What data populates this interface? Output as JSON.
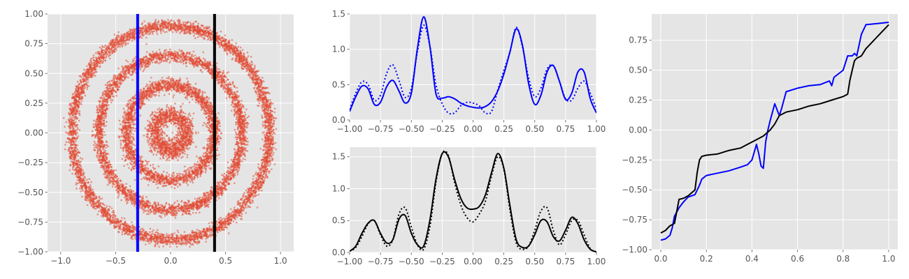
{
  "figure": {
    "background": "#ffffff",
    "axes_facecolor": "#e5e5e5",
    "grid_color": "#ffffff",
    "tick_color": "#555555"
  },
  "chart_data": [
    {
      "type": "scatter",
      "description": "Concentric noisy rings of points with two vertical lines",
      "rings": [
        {
          "radius": 0.15,
          "width": 0.09,
          "count": 1400
        },
        {
          "radius": 0.4,
          "width": 0.07,
          "count": 2600
        },
        {
          "radius": 0.65,
          "width": 0.06,
          "count": 3500
        },
        {
          "radius": 0.9,
          "width": 0.06,
          "count": 4800
        }
      ],
      "point_color": "#e24a33",
      "vlines": [
        {
          "x": -0.3,
          "color": "#0000ff"
        },
        {
          "x": 0.4,
          "color": "#000000"
        }
      ],
      "xlim": [
        -1.12,
        1.12
      ],
      "ylim": [
        -1.0,
        1.0
      ],
      "xticks": [
        -1.0,
        -0.5,
        0.0,
        0.5,
        1.0
      ],
      "xtick_labels": [
        "−1.0",
        "−0.5",
        "0.0",
        "0.5",
        "1.0"
      ],
      "yticks": [
        -1.0,
        -0.75,
        -0.5,
        -0.25,
        0.0,
        0.25,
        0.5,
        0.75,
        1.0
      ],
      "ytick_labels": [
        "−1.00",
        "−0.75",
        "−0.50",
        "−0.25",
        "0.00",
        "0.25",
        "0.50",
        "0.75",
        "1.00"
      ],
      "grid": true
    },
    {
      "type": "line",
      "description": "Density slice at x = -0.3 (blue): solid = estimate, dotted = reference",
      "xlim": [
        -1.0,
        1.0
      ],
      "ylim": [
        0.0,
        1.5
      ],
      "xticks": [
        -1.0,
        -0.75,
        -0.5,
        -0.25,
        0.0,
        0.25,
        0.5,
        0.75,
        1.0
      ],
      "xtick_labels": [
        "−1.00",
        "−0.75",
        "−0.50",
        "−0.25",
        "0.00",
        "0.25",
        "0.50",
        "0.75",
        "1.00"
      ],
      "yticks": [
        0.0,
        0.5,
        1.0,
        1.5
      ],
      "ytick_labels": [
        "0.0",
        "0.5",
        "1.0",
        "1.5"
      ],
      "grid": true,
      "series": [
        {
          "style": "solid",
          "color": "#0000ff",
          "x": [
            -1.0,
            -0.95,
            -0.9,
            -0.85,
            -0.8,
            -0.75,
            -0.7,
            -0.65,
            -0.6,
            -0.55,
            -0.5,
            -0.45,
            -0.4,
            -0.35,
            -0.3,
            -0.25,
            -0.2,
            -0.15,
            -0.1,
            -0.05,
            0.0,
            0.05,
            0.1,
            0.15,
            0.2,
            0.25,
            0.3,
            0.35,
            0.4,
            0.45,
            0.5,
            0.55,
            0.6,
            0.65,
            0.7,
            0.75,
            0.8,
            0.85,
            0.9,
            0.95,
            1.0
          ],
          "y": [
            0.12,
            0.33,
            0.48,
            0.44,
            0.22,
            0.25,
            0.47,
            0.56,
            0.41,
            0.24,
            0.38,
            1.02,
            1.46,
            1.05,
            0.37,
            0.31,
            0.33,
            0.3,
            0.24,
            0.2,
            0.18,
            0.17,
            0.19,
            0.26,
            0.41,
            0.65,
            0.97,
            1.29,
            1.06,
            0.52,
            0.22,
            0.35,
            0.68,
            0.77,
            0.55,
            0.29,
            0.38,
            0.68,
            0.68,
            0.3,
            0.1
          ]
        },
        {
          "style": "dotted",
          "color": "#0000ff",
          "x": [
            -1.0,
            -0.95,
            -0.9,
            -0.85,
            -0.8,
            -0.75,
            -0.7,
            -0.65,
            -0.6,
            -0.55,
            -0.5,
            -0.45,
            -0.4,
            -0.35,
            -0.3,
            -0.25,
            -0.2,
            -0.15,
            -0.1,
            -0.05,
            0.0,
            0.05,
            0.1,
            0.15,
            0.2,
            0.25,
            0.3,
            0.35,
            0.4,
            0.45,
            0.5,
            0.55,
            0.6,
            0.65,
            0.7,
            0.75,
            0.8,
            0.85,
            0.9,
            0.95,
            1.0
          ],
          "y": [
            0.15,
            0.38,
            0.54,
            0.5,
            0.28,
            0.35,
            0.66,
            0.78,
            0.56,
            0.32,
            0.45,
            0.97,
            1.34,
            1.05,
            0.5,
            0.23,
            0.1,
            0.1,
            0.2,
            0.25,
            0.24,
            0.2,
            0.1,
            0.12,
            0.42,
            0.7,
            0.97,
            1.31,
            1.04,
            0.6,
            0.33,
            0.45,
            0.72,
            0.77,
            0.55,
            0.3,
            0.28,
            0.45,
            0.55,
            0.38,
            0.15
          ]
        }
      ]
    },
    {
      "type": "line",
      "description": "Density slice at x = 0.4 (black): solid = estimate, dotted = reference",
      "xlim": [
        -1.0,
        1.0
      ],
      "ylim": [
        0.0,
        1.65
      ],
      "xticks": [
        -1.0,
        -0.75,
        -0.5,
        -0.25,
        0.0,
        0.25,
        0.5,
        0.75,
        1.0
      ],
      "xtick_labels": [
        "−1.00",
        "−0.75",
        "−0.50",
        "−0.25",
        "0.00",
        "0.25",
        "0.50",
        "0.75",
        "1.00"
      ],
      "yticks": [
        0.0,
        0.5,
        1.0,
        1.5
      ],
      "ytick_labels": [
        "0.0",
        "0.5",
        "1.0",
        "1.5"
      ],
      "grid": true,
      "series": [
        {
          "style": "solid",
          "color": "#000000",
          "x": [
            -1.0,
            -0.95,
            -0.9,
            -0.85,
            -0.8,
            -0.75,
            -0.7,
            -0.65,
            -0.6,
            -0.55,
            -0.5,
            -0.45,
            -0.4,
            -0.35,
            -0.3,
            -0.25,
            -0.2,
            -0.15,
            -0.1,
            -0.05,
            0.0,
            0.05,
            0.1,
            0.15,
            0.2,
            0.25,
            0.3,
            0.35,
            0.4,
            0.45,
            0.5,
            0.55,
            0.6,
            0.65,
            0.7,
            0.75,
            0.8,
            0.85,
            0.9,
            0.95,
            1.0
          ],
          "y": [
            0.02,
            0.1,
            0.3,
            0.46,
            0.5,
            0.3,
            0.15,
            0.2,
            0.52,
            0.58,
            0.3,
            0.12,
            0.1,
            0.5,
            1.15,
            1.55,
            1.5,
            1.15,
            0.85,
            0.7,
            0.68,
            0.72,
            0.9,
            1.25,
            1.55,
            1.32,
            0.72,
            0.2,
            0.08,
            0.1,
            0.28,
            0.5,
            0.48,
            0.25,
            0.18,
            0.35,
            0.55,
            0.45,
            0.2,
            0.05,
            0.01
          ]
        },
        {
          "style": "dotted",
          "color": "#000000",
          "x": [
            -1.0,
            -0.95,
            -0.9,
            -0.85,
            -0.8,
            -0.75,
            -0.7,
            -0.65,
            -0.6,
            -0.55,
            -0.5,
            -0.45,
            -0.4,
            -0.35,
            -0.3,
            -0.25,
            -0.2,
            -0.15,
            -0.1,
            -0.05,
            0.0,
            0.05,
            0.1,
            0.15,
            0.2,
            0.25,
            0.3,
            0.35,
            0.4,
            0.45,
            0.5,
            0.55,
            0.6,
            0.65,
            0.7,
            0.75,
            0.8,
            0.85,
            0.9,
            0.95,
            1.0
          ],
          "y": [
            0.02,
            0.08,
            0.25,
            0.45,
            0.5,
            0.28,
            0.1,
            0.2,
            0.6,
            0.7,
            0.4,
            0.12,
            0.05,
            0.4,
            1.1,
            1.55,
            1.52,
            1.1,
            0.75,
            0.55,
            0.48,
            0.6,
            0.8,
            1.2,
            1.5,
            1.3,
            0.65,
            0.15,
            0.05,
            0.1,
            0.35,
            0.65,
            0.7,
            0.35,
            0.12,
            0.28,
            0.5,
            0.5,
            0.28,
            0.06,
            0.01
          ]
        }
      ]
    },
    {
      "type": "line",
      "description": "Cumulative quantile curves for the two slices",
      "xlim": [
        -0.04,
        1.04
      ],
      "ylim": [
        -1.0,
        0.97
      ],
      "xticks": [
        0.0,
        0.2,
        0.4,
        0.6,
        0.8,
        1.0
      ],
      "xtick_labels": [
        "0.0",
        "0.2",
        "0.4",
        "0.6",
        "0.8",
        "1.0"
      ],
      "yticks": [
        -1.0,
        -0.75,
        -0.5,
        -0.25,
        0.0,
        0.25,
        0.5,
        0.75
      ],
      "ytick_labels": [
        "−1.00",
        "−0.75",
        "−0.50",
        "−0.25",
        "0.00",
        "0.25",
        "0.50",
        "0.75"
      ],
      "grid": true,
      "series": [
        {
          "color": "#0000ff",
          "x": [
            0.0,
            0.02,
            0.04,
            0.05,
            0.06,
            0.08,
            0.1,
            0.12,
            0.15,
            0.17,
            0.18,
            0.2,
            0.25,
            0.3,
            0.35,
            0.38,
            0.4,
            0.42,
            0.43,
            0.44,
            0.45,
            0.46,
            0.47,
            0.48,
            0.5,
            0.52,
            0.53,
            0.55,
            0.6,
            0.65,
            0.7,
            0.74,
            0.75,
            0.76,
            0.8,
            0.82,
            0.84,
            0.85,
            0.86,
            0.88,
            0.9,
            0.95,
            1.0
          ],
          "y": [
            -0.92,
            -0.91,
            -0.88,
            -0.82,
            -0.72,
            -0.65,
            -0.6,
            -0.56,
            -0.54,
            -0.46,
            -0.41,
            -0.38,
            -0.36,
            -0.34,
            -0.31,
            -0.29,
            -0.25,
            -0.12,
            -0.2,
            -0.3,
            -0.32,
            -0.1,
            0.0,
            0.08,
            0.22,
            0.12,
            0.18,
            0.32,
            0.35,
            0.37,
            0.38,
            0.41,
            0.37,
            0.44,
            0.5,
            0.62,
            0.62,
            0.64,
            0.62,
            0.8,
            0.88,
            0.89,
            0.9
          ]
        },
        {
          "color": "#000000",
          "x": [
            0.0,
            0.02,
            0.04,
            0.06,
            0.08,
            0.1,
            0.12,
            0.15,
            0.16,
            0.17,
            0.18,
            0.2,
            0.25,
            0.3,
            0.35,
            0.38,
            0.4,
            0.42,
            0.45,
            0.48,
            0.5,
            0.52,
            0.55,
            0.6,
            0.65,
            0.7,
            0.75,
            0.8,
            0.82,
            0.83,
            0.84,
            0.85,
            0.86,
            0.88,
            0.9,
            0.95,
            1.0
          ],
          "y": [
            -0.86,
            -0.84,
            -0.8,
            -0.78,
            -0.58,
            -0.57,
            -0.55,
            -0.5,
            -0.35,
            -0.25,
            -0.22,
            -0.21,
            -0.2,
            -0.17,
            -0.15,
            -0.12,
            -0.1,
            -0.08,
            -0.05,
            0.0,
            0.05,
            0.12,
            0.15,
            0.17,
            0.2,
            0.22,
            0.25,
            0.28,
            0.3,
            0.42,
            0.5,
            0.58,
            0.6,
            0.62,
            0.68,
            0.78,
            0.88
          ]
        }
      ]
    }
  ]
}
